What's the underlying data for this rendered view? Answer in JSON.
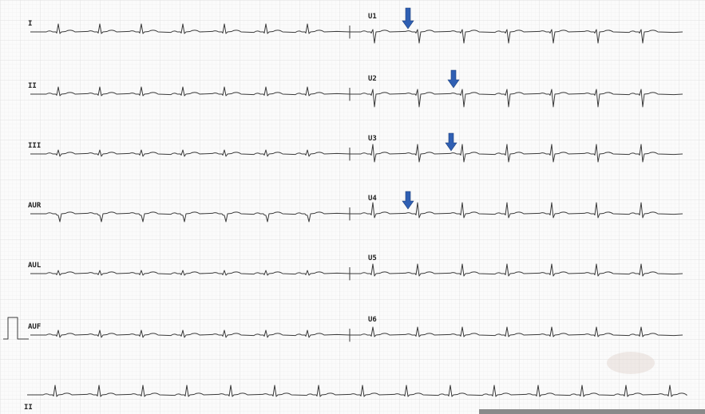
{
  "leads": {
    "left": [
      "I",
      "II",
      "III",
      "AUR",
      "AUL",
      "AUF"
    ],
    "right": [
      "U1",
      "U2",
      "U3",
      "U4",
      "U5",
      "U6"
    ],
    "rhythm": "II"
  }
}
